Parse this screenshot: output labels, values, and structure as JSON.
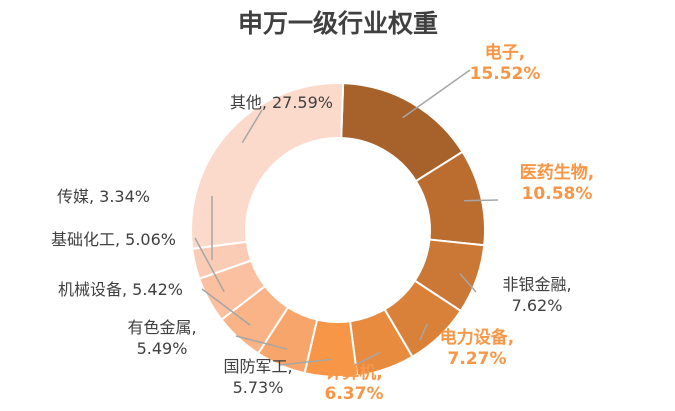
{
  "chart_data": {
    "type": "pie",
    "title": "申万一级行业权重",
    "slices": [
      {
        "name": "电子",
        "value": 15.52,
        "label_line1": "电子,",
        "label_line2": "15.52%",
        "color": "#a6622a",
        "emphasis": true
      },
      {
        "name": "医药生物",
        "value": 10.58,
        "label_line1": "医药生物,",
        "label_line2": "10.58%",
        "color": "#bb6d30",
        "emphasis": true
      },
      {
        "name": "非银金融",
        "value": 7.62,
        "label_line1": "非银金融,",
        "label_line2": "7.62%",
        "color": "#cb7735",
        "emphasis": false
      },
      {
        "name": "电力设备",
        "value": 7.27,
        "label_line1": "电力设备,",
        "label_line2": "7.27%",
        "color": "#d98139",
        "emphasis": true
      },
      {
        "name": "计算机",
        "value": 6.37,
        "label_line1": "计算机,",
        "label_line2": "6.37%",
        "color": "#e88b3f",
        "emphasis": true
      },
      {
        "name": "国防军工",
        "value": 5.73,
        "label_line1": "国防军工,",
        "label_line2": "5.73%",
        "color": "#f79646",
        "emphasis": false
      },
      {
        "name": "有色金属",
        "value": 5.49,
        "label_line1": "有色金属,",
        "label_line2": "5.49%",
        "color": "#f7a56a",
        "emphasis": false
      },
      {
        "name": "机械设备",
        "value": 5.42,
        "label_line1": "机械设备, 5.42%",
        "label_line2": "",
        "color": "#f9b386",
        "emphasis": false
      },
      {
        "name": "基础化工",
        "value": 5.06,
        "label_line1": "基础化工, 5.06%",
        "label_line2": "",
        "color": "#fac09f",
        "emphasis": false
      },
      {
        "name": "传媒",
        "value": 3.34,
        "label_line1": "传媒, 3.34%",
        "label_line2": "",
        "color": "#fbccb5",
        "emphasis": false
      },
      {
        "name": "其他",
        "value": 27.59,
        "label_line1": "其他, 27.59%",
        "label_line2": "",
        "color": "#fcdacb",
        "emphasis": false
      }
    ]
  }
}
